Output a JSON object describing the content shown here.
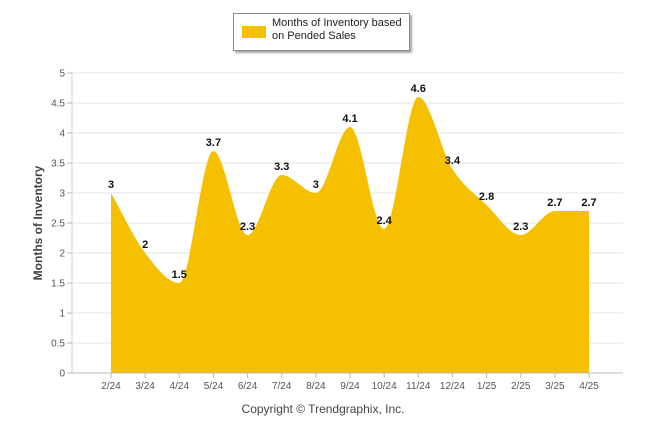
{
  "chart_data": {
    "type": "area",
    "categories": [
      "2/24",
      "3/24",
      "4/24",
      "5/24",
      "6/24",
      "7/24",
      "8/24",
      "9/24",
      "10/24",
      "11/24",
      "12/24",
      "1/25",
      "2/25",
      "3/25",
      "4/25"
    ],
    "series": [
      {
        "name": "Months of Inventory based on Pended Sales",
        "values": [
          3,
          2,
          1.5,
          3.7,
          2.3,
          3.3,
          3,
          4.1,
          2.4,
          4.6,
          3.4,
          2.8,
          2.3,
          2.7,
          2.7
        ]
      }
    ],
    "data_labels": [
      "3",
      "2",
      "1.5",
      "3.7",
      "2.3",
      "3.3",
      "3",
      "4.1",
      "2.4",
      "4.6",
      "3.4",
      "2.8",
      "2.3",
      "2.7",
      "2.7"
    ],
    "ylabel": "Months of Inventory",
    "ylim": [
      0,
      5
    ],
    "yticks": [
      "0",
      "0.5",
      "1",
      "1.5",
      "2",
      "2.5",
      "3",
      "3.5",
      "4",
      "4.5",
      "5"
    ],
    "grid": true,
    "legend_position": "top-center",
    "series_color": "#f5c000"
  },
  "footer": {
    "copyright": "Copyright © Trendgraphix, Inc."
  }
}
